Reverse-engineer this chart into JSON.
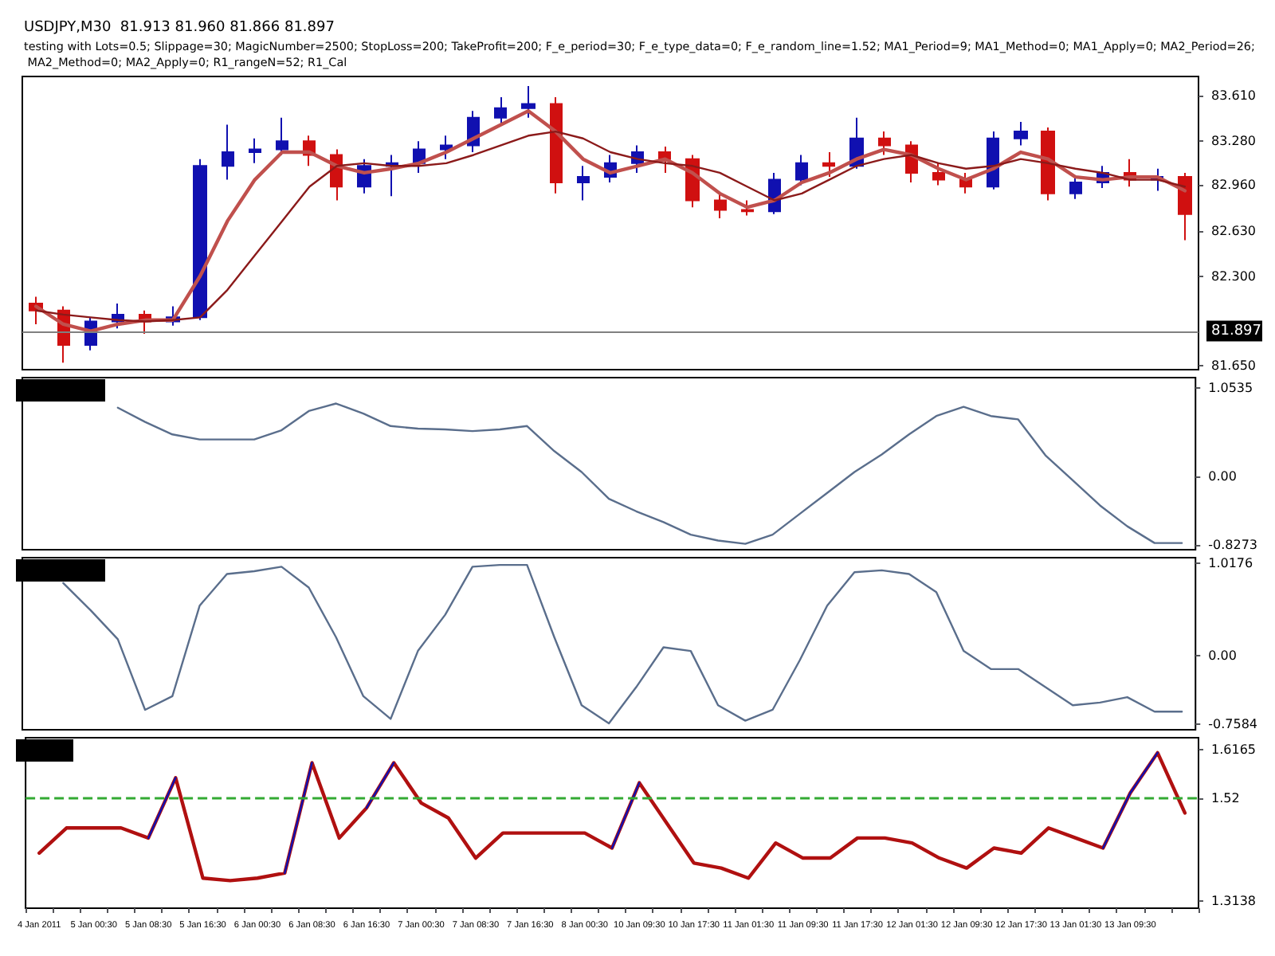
{
  "chart_data": [
    {
      "type": "candlestick",
      "title": "USDJPY,M30  81.913 81.960 81.866 81.897",
      "subtitle": "testing with Lots=0.5; Slippage=30; MagicNumber=2500; StopLoss=200; TakeProfit=200; F_e_period=30; F_e_type_data=0; F_e_random_line=1.52; MA1_Period=9; MA1_Method=0; MA1_Apply=0; MA2_Period=26; MA2_Method=0; MA2_Apply=0; R1_rangeN=52; R1_Cal",
      "categories": [
        null,
        null,
        null,
        null,
        null,
        null,
        null,
        null,
        null,
        null,
        null,
        null,
        null,
        null,
        null,
        null,
        null,
        null,
        null,
        null,
        null,
        null,
        null,
        null,
        null,
        null,
        null,
        null,
        null,
        null,
        null,
        null,
        null,
        null,
        null,
        null,
        null,
        null,
        null,
        null,
        null,
        null,
        null
      ],
      "series": [
        {
          "ohlc": [
            [
              82.1,
              82.15,
              81.95,
              82.05
            ],
            [
              82.05,
              82.08,
              81.67,
              81.8
            ],
            [
              81.8,
              82.0,
              81.76,
              81.97
            ],
            [
              81.97,
              82.1,
              81.92,
              82.02
            ],
            [
              82.02,
              82.05,
              81.88,
              81.97
            ],
            [
              81.97,
              82.08,
              81.94,
              82.0
            ],
            [
              82.0,
              83.15,
              81.98,
              83.1
            ],
            [
              83.1,
              83.4,
              83.0,
              83.2
            ],
            [
              83.2,
              83.3,
              83.12,
              83.22
            ],
            [
              83.22,
              83.45,
              83.18,
              83.28
            ],
            [
              83.28,
              83.32,
              83.1,
              83.18
            ],
            [
              83.18,
              83.22,
              82.85,
              82.95
            ],
            [
              82.95,
              83.15,
              82.9,
              83.1
            ],
            [
              83.1,
              83.18,
              82.88,
              83.12
            ],
            [
              83.12,
              83.28,
              83.05,
              83.22
            ],
            [
              83.22,
              83.32,
              83.15,
              83.25
            ],
            [
              83.25,
              83.5,
              83.2,
              83.45
            ],
            [
              83.45,
              83.6,
              83.4,
              83.52
            ],
            [
              83.52,
              83.68,
              83.45,
              83.55
            ],
            [
              83.55,
              83.6,
              82.9,
              82.98
            ],
            [
              82.98,
              83.1,
              82.85,
              83.02
            ],
            [
              83.02,
              83.18,
              82.98,
              83.12
            ],
            [
              83.12,
              83.25,
              83.05,
              83.2
            ],
            [
              83.2,
              83.24,
              83.05,
              83.15
            ],
            [
              83.15,
              83.18,
              82.8,
              82.85
            ],
            [
              82.85,
              82.9,
              82.72,
              82.78
            ],
            [
              82.78,
              82.85,
              82.74,
              82.77
            ],
            [
              82.77,
              83.05,
              82.75,
              83.0
            ],
            [
              83.0,
              83.18,
              82.96,
              83.12
            ],
            [
              83.12,
              83.2,
              83.02,
              83.1
            ],
            [
              83.1,
              83.45,
              83.08,
              83.3
            ],
            [
              83.3,
              83.35,
              83.18,
              83.25
            ],
            [
              83.25,
              83.28,
              82.98,
              83.05
            ],
            [
              83.05,
              83.12,
              82.96,
              83.0
            ],
            [
              83.0,
              83.05,
              82.9,
              82.95
            ],
            [
              82.95,
              83.35,
              82.93,
              83.3
            ],
            [
              83.3,
              83.42,
              83.25,
              83.35
            ],
            [
              83.35,
              83.38,
              82.85,
              82.9
            ],
            [
              82.9,
              83.02,
              82.86,
              82.98
            ],
            [
              82.98,
              83.1,
              82.94,
              83.05
            ],
            [
              83.05,
              83.15,
              82.95,
              83.0
            ],
            [
              83.0,
              83.08,
              82.92,
              83.02
            ],
            [
              83.02,
              83.05,
              82.56,
              82.75
            ]
          ],
          "colors": [
            "#d01010",
            "#d01010",
            "#1010b0",
            "#1010b0",
            "#d01010",
            "#1010b0",
            "#1010b0",
            "#1010b0",
            "#1010b0",
            "#1010b0",
            "#d01010",
            "#d01010",
            "#1010b0",
            "#1010b0",
            "#1010b0",
            "#1010b0",
            "#1010b0",
            "#1010b0",
            "#1010b0",
            "#d01010",
            "#1010b0",
            "#1010b0",
            "#1010b0",
            "#d01010",
            "#d01010",
            "#d01010",
            "#d01010",
            "#1010b0",
            "#1010b0",
            "#d01010",
            "#1010b0",
            "#d01010",
            "#d01010",
            "#d01010",
            "#d01010",
            "#1010b0",
            "#1010b0",
            "#d01010",
            "#1010b0",
            "#1010b0",
            "#d01010",
            "#1010b0",
            "#d01010"
          ]
        },
        {
          "type": "line",
          "color": "#c0504d",
          "values": [
            82.08,
            81.95,
            81.9,
            81.95,
            81.98,
            81.98,
            82.3,
            82.7,
            83.0,
            83.2,
            83.2,
            83.1,
            83.05,
            83.08,
            83.12,
            83.2,
            83.3,
            83.4,
            83.5,
            83.35,
            83.15,
            83.05,
            83.1,
            83.15,
            83.05,
            82.9,
            82.8,
            82.85,
            82.98,
            83.05,
            83.15,
            83.22,
            83.18,
            83.08,
            83.0,
            83.08,
            83.2,
            83.15,
            83.02,
            83.0,
            83.02,
            83.02,
            82.92
          ]
        },
        {
          "type": "line",
          "color": "#8b1a1a",
          "values": [
            82.05,
            82.02,
            82.0,
            81.98,
            81.97,
            81.98,
            82.0,
            82.2,
            82.45,
            82.7,
            82.95,
            83.1,
            83.12,
            83.1,
            83.1,
            83.12,
            83.18,
            83.25,
            83.32,
            83.35,
            83.3,
            83.2,
            83.15,
            83.12,
            83.1,
            83.05,
            82.95,
            82.85,
            82.9,
            83.0,
            83.1,
            83.15,
            83.18,
            83.12,
            83.08,
            83.1,
            83.15,
            83.12,
            83.08,
            83.05,
            83.0,
            83.0,
            82.95
          ]
        }
      ],
      "ylim": [
        81.62,
        83.75
      ],
      "yticks": [
        {
          "value": 83.61,
          "label": "83.610"
        },
        {
          "value": 83.28,
          "label": "83.280"
        },
        {
          "value": 82.96,
          "label": "82.960"
        },
        {
          "value": 82.63,
          "label": "82.630"
        },
        {
          "value": 82.3,
          "label": "82.300"
        },
        {
          "value": 81.65,
          "label": "81.650"
        }
      ],
      "ref_lines": [
        {
          "axis": "y",
          "value": 81.897,
          "label": "81.897",
          "color": "#808080"
        }
      ],
      "tick_labels": "y"
    },
    {
      "type": "line",
      "categories": [
        null,
        null,
        null,
        null,
        null,
        null,
        null,
        null,
        null,
        null,
        null,
        null,
        null,
        null,
        null,
        null,
        null,
        null,
        null,
        null,
        null,
        null,
        null,
        null,
        null,
        null,
        null,
        null,
        null,
        null,
        null,
        null,
        null,
        null,
        null,
        null,
        null,
        null,
        null,
        null,
        null,
        null,
        null
      ],
      "series": [
        {
          "color": "#5a6e8c",
          "values": [
            null,
            null,
            null,
            0.82,
            0.65,
            0.5,
            0.44,
            0.44,
            0.44,
            0.55,
            0.78,
            0.87,
            0.75,
            0.6,
            0.57,
            0.56,
            0.54,
            0.56,
            0.6,
            0.3,
            0.05,
            -0.27,
            -0.42,
            -0.55,
            -0.7,
            -0.77,
            -0.81,
            -0.7,
            -0.45,
            -0.2,
            0.05,
            0.26,
            0.5,
            0.72,
            0.83,
            0.72,
            0.68,
            0.25,
            -0.05,
            -0.35,
            -0.6,
            -0.8,
            -0.8
          ]
        }
      ],
      "ylim": [
        -0.88,
        1.18
      ],
      "yticks": [
        1.0535,
        {
          "value": 0,
          "label": "0.00"
        },
        -0.8273
      ],
      "tick_labels": "y"
    },
    {
      "type": "line",
      "categories": [
        null,
        null,
        null,
        null,
        null,
        null,
        null,
        null,
        null,
        null,
        null,
        null,
        null,
        null,
        null,
        null,
        null,
        null,
        null,
        null,
        null,
        null,
        null,
        null,
        null,
        null,
        null,
        null,
        null,
        null,
        null,
        null,
        null,
        null,
        null,
        null,
        null,
        null,
        null,
        null,
        null,
        null,
        null
      ],
      "series": [
        {
          "color": "#5a6e8c",
          "values": [
            null,
            0.8,
            0.5,
            0.18,
            -0.6,
            -0.45,
            0.55,
            0.9,
            0.93,
            0.98,
            0.75,
            0.2,
            -0.45,
            -0.7,
            0.05,
            0.45,
            0.98,
            1.0,
            1.0,
            0.2,
            -0.55,
            -0.75,
            -0.35,
            0.09,
            0.05,
            -0.55,
            -0.72,
            -0.6,
            -0.05,
            0.55,
            0.92,
            0.94,
            0.9,
            0.7,
            0.05,
            -0.15,
            -0.15,
            -0.35,
            -0.55,
            -0.52,
            -0.46,
            -0.62,
            -0.62
          ]
        }
      ],
      "ylim": [
        -0.82,
        1.08
      ],
      "yticks": [
        1.0176,
        {
          "value": 0,
          "label": "0.00"
        },
        -0.7584
      ],
      "tick_labels": "y"
    },
    {
      "type": "line",
      "categories": [
        "4 Jan 2011",
        null,
        "5 Jan 00:30",
        null,
        "5 Jan 08:30",
        null,
        "5 Jan 16:30",
        null,
        "6 Jan 00:30",
        null,
        "6 Jan 08:30",
        null,
        "6 Jan 16:30",
        null,
        "7 Jan 00:30",
        null,
        "7 Jan 08:30",
        null,
        "7 Jan 16:30",
        null,
        "8 Jan 00:30",
        null,
        "10 Jan 09:30",
        null,
        "10 Jan 17:30",
        null,
        "11 Jan 01:30",
        null,
        "11 Jan 09:30",
        null,
        "11 Jan 17:30",
        null,
        "12 Jan 01:30",
        null,
        "12 Jan 09:30",
        null,
        "12 Jan 17:30",
        null,
        "13 Jan 01:30",
        null,
        "13 Jan 09:30",
        null,
        null
      ],
      "series": [
        {
          "color": "#b01010",
          "values": [
            1.41,
            1.46,
            1.46,
            1.46,
            1.44,
            1.56,
            1.36,
            1.355,
            1.36,
            1.37,
            1.59,
            1.44,
            1.5,
            1.59,
            1.51,
            1.48,
            1.4,
            1.45,
            1.45,
            1.45,
            1.45,
            1.42,
            1.55,
            1.47,
            1.39,
            1.38,
            1.36,
            1.43,
            1.4,
            1.4,
            1.44,
            1.44,
            1.43,
            1.4,
            1.38,
            1.42,
            1.41,
            1.46,
            1.44,
            1.42,
            1.53,
            1.61,
            1.49
          ]
        },
        {
          "color": "#1010b0",
          "values": [
            null,
            null,
            null,
            null,
            1.44,
            1.56,
            null,
            null,
            null,
            1.37,
            1.59,
            null,
            1.5,
            1.59,
            null,
            null,
            null,
            null,
            null,
            null,
            null,
            1.42,
            1.55,
            null,
            null,
            null,
            null,
            null,
            null,
            null,
            null,
            null,
            null,
            null,
            null,
            null,
            null,
            null,
            null,
            1.42,
            1.53,
            1.61,
            null
          ]
        }
      ],
      "ylim": [
        1.3,
        1.64
      ],
      "yticks": [
        1.6165,
        1.52,
        1.3138
      ],
      "ref_lines": [
        {
          "axis": "y",
          "value": 1.52,
          "color": "#33aa33",
          "line_style": "dashed"
        }
      ]
    }
  ]
}
